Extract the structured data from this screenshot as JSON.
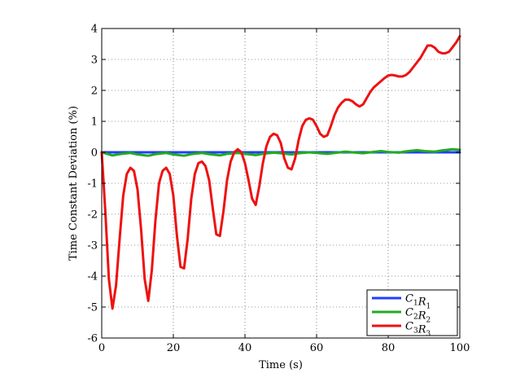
{
  "chart_data": {
    "type": "line",
    "title": "",
    "xlabel": "Time (s)",
    "ylabel": "Time Constant Deviation (%)",
    "xlim": [
      0,
      100
    ],
    "ylim": [
      -6,
      4
    ],
    "xticks": [
      0,
      20,
      40,
      60,
      80,
      100
    ],
    "yticks": [
      -6,
      -5,
      -4,
      -3,
      -2,
      -1,
      0,
      1,
      2,
      3,
      4
    ],
    "grid": true,
    "legend_position": "bottom-right",
    "series": [
      {
        "name": "C1R1",
        "legend": {
          "main": [
            "C",
            "R"
          ],
          "sub": [
            "1",
            "1"
          ]
        },
        "color": "#1f3fff",
        "x": [
          0,
          5,
          10,
          15,
          20,
          25,
          30,
          35,
          40,
          45,
          50,
          55,
          60,
          65,
          70,
          75,
          80,
          85,
          90,
          95,
          100
        ],
        "y": [
          0,
          0,
          0,
          0,
          0,
          0,
          0,
          0,
          0,
          0,
          0,
          0,
          0,
          0,
          0,
          0,
          0,
          0,
          0,
          0,
          0
        ]
      },
      {
        "name": "C2R2",
        "legend": {
          "main": [
            "C",
            "R"
          ],
          "sub": [
            "2",
            "2"
          ]
        },
        "color": "#22aa22",
        "x": [
          0,
          3,
          5,
          8,
          10,
          13,
          15,
          18,
          20,
          23,
          25,
          28,
          30,
          33,
          35,
          38,
          40,
          43,
          45,
          48,
          50,
          53,
          55,
          58,
          60,
          63,
          65,
          68,
          70,
          73,
          75,
          78,
          80,
          83,
          85,
          88,
          90,
          93,
          95,
          98,
          100
        ],
        "y": [
          0,
          -0.1,
          -0.06,
          -0.02,
          -0.07,
          -0.11,
          -0.06,
          -0.02,
          -0.07,
          -0.11,
          -0.06,
          -0.02,
          -0.06,
          -0.1,
          -0.05,
          -0.02,
          -0.05,
          -0.09,
          -0.05,
          -0.01,
          -0.03,
          -0.07,
          -0.03,
          0.0,
          -0.02,
          -0.05,
          -0.02,
          0.02,
          0.0,
          -0.03,
          0.0,
          0.04,
          0.01,
          -0.01,
          0.03,
          0.07,
          0.04,
          0.02,
          0.06,
          0.1,
          0.08
        ]
      },
      {
        "name": "C3R3",
        "legend": {
          "main": [
            "C",
            "R"
          ],
          "sub": [
            "3",
            "3"
          ]
        },
        "color": "#ee1111",
        "x": [
          0,
          1,
          2,
          3,
          4,
          5,
          6,
          7,
          8,
          9,
          10,
          11,
          12,
          13,
          14,
          15,
          16,
          17,
          18,
          19,
          20,
          21,
          22,
          23,
          24,
          25,
          26,
          27,
          28,
          29,
          30,
          31,
          32,
          33,
          34,
          35,
          36,
          37,
          38,
          39,
          40,
          41,
          42,
          43,
          44,
          45,
          46,
          47,
          48,
          49,
          50,
          51,
          52,
          53,
          54,
          55,
          56,
          57,
          58,
          59,
          60,
          61,
          62,
          63,
          64,
          65,
          66,
          67,
          68,
          69,
          70,
          71,
          72,
          73,
          74,
          75,
          76,
          77,
          78,
          79,
          80,
          81,
          82,
          83,
          84,
          85,
          86,
          87,
          88,
          89,
          90,
          91,
          92,
          93,
          94,
          95,
          96,
          97,
          98,
          99,
          100
        ],
        "y": [
          0,
          -1.9,
          -4.1,
          -5.05,
          -4.3,
          -2.8,
          -1.4,
          -0.7,
          -0.5,
          -0.6,
          -1.2,
          -2.5,
          -4.1,
          -4.8,
          -3.8,
          -2.2,
          -1.0,
          -0.6,
          -0.5,
          -0.7,
          -1.4,
          -2.7,
          -3.7,
          -3.75,
          -2.8,
          -1.5,
          -0.7,
          -0.35,
          -0.3,
          -0.45,
          -0.9,
          -1.8,
          -2.65,
          -2.7,
          -1.9,
          -0.9,
          -0.3,
          0.0,
          0.1,
          0.0,
          -0.35,
          -0.9,
          -1.5,
          -1.7,
          -1.1,
          -0.35,
          0.2,
          0.5,
          0.6,
          0.55,
          0.3,
          -0.2,
          -0.5,
          -0.55,
          -0.2,
          0.4,
          0.85,
          1.05,
          1.1,
          1.05,
          0.85,
          0.6,
          0.5,
          0.55,
          0.85,
          1.2,
          1.45,
          1.6,
          1.7,
          1.7,
          1.65,
          1.55,
          1.48,
          1.55,
          1.75,
          1.95,
          2.1,
          2.2,
          2.3,
          2.4,
          2.48,
          2.5,
          2.48,
          2.45,
          2.45,
          2.5,
          2.6,
          2.75,
          2.9,
          3.05,
          3.25,
          3.45,
          3.45,
          3.38,
          3.25,
          3.2,
          3.2,
          3.25,
          3.4,
          3.55,
          3.75
        ]
      }
    ]
  }
}
